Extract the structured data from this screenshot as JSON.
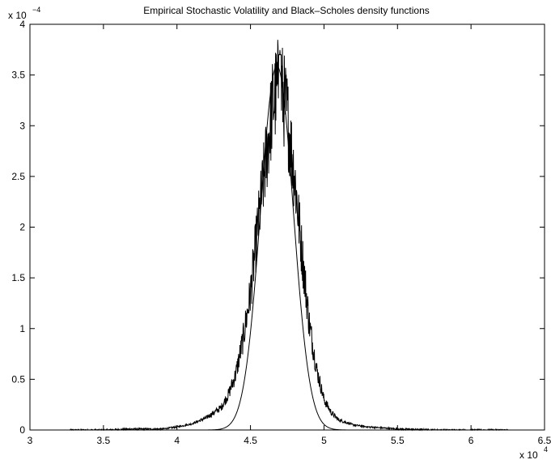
{
  "chart_data": {
    "type": "line",
    "title": "Empirical Stochastic Volatility and Black–Scholes density functions",
    "xlim": [
      3,
      6.5
    ],
    "ylim": [
      0,
      4
    ],
    "x_exponent_label": {
      "base": "x 10",
      "power": "4"
    },
    "y_exponent_label": {
      "base": "x 10",
      "power": "−4"
    },
    "x_ticks": [
      "3",
      "3.5",
      "4",
      "4.5",
      "5",
      "5.5",
      "6",
      "6.5"
    ],
    "y_ticks": [
      "0",
      "0.5",
      "1",
      "1.5",
      "2",
      "2.5",
      "3",
      "3.5",
      "4"
    ],
    "grid": false,
    "series": [
      {
        "kind": "smooth-density",
        "color": "#000000",
        "mean": 4.68,
        "peak": 3.59,
        "sigma": 0.111,
        "x_range": [
          4.2,
          5.2
        ]
      },
      {
        "kind": "noisy-empirical",
        "color": "#000000",
        "anchors": [
          [
            3.27,
            0.0
          ],
          [
            3.5,
            0.0
          ],
          [
            3.7,
            0.01
          ],
          [
            3.9,
            0.01
          ],
          [
            4.0,
            0.03
          ],
          [
            4.1,
            0.06
          ],
          [
            4.2,
            0.12
          ],
          [
            4.3,
            0.22
          ],
          [
            4.35,
            0.35
          ],
          [
            4.4,
            0.55
          ],
          [
            4.45,
            0.9
          ],
          [
            4.5,
            1.35
          ],
          [
            4.55,
            2.0
          ],
          [
            4.6,
            2.6
          ],
          [
            4.65,
            3.2
          ],
          [
            4.7,
            3.45
          ],
          [
            4.75,
            3.1
          ],
          [
            4.8,
            2.5
          ],
          [
            4.85,
            1.75
          ],
          [
            4.9,
            1.05
          ],
          [
            4.95,
            0.6
          ],
          [
            5.0,
            0.3
          ],
          [
            5.05,
            0.17
          ],
          [
            5.1,
            0.1
          ],
          [
            5.2,
            0.05
          ],
          [
            5.3,
            0.03
          ],
          [
            5.5,
            0.01
          ],
          [
            5.8,
            0.0
          ],
          [
            6.25,
            0.0
          ]
        ]
      }
    ]
  }
}
